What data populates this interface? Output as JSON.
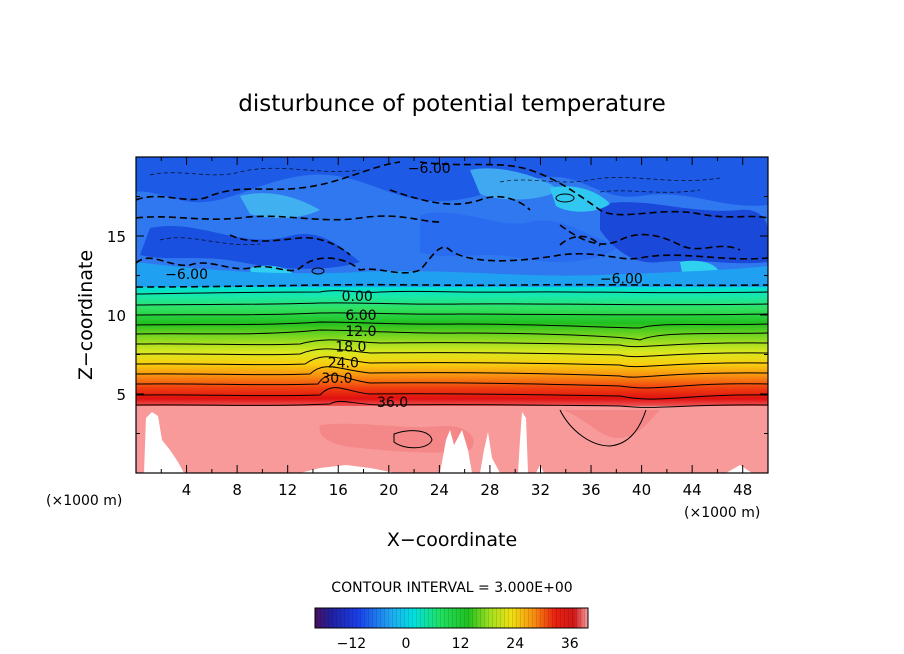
{
  "chart_data": {
    "type": "heatmap",
    "title": "disturbunce of potential temperature",
    "xlabel": "X−coordinate",
    "ylabel": "Z−coordinate",
    "x_unit": "(×1000 m)",
    "y_unit": "(×1000 m)",
    "xlim": [
      0,
      50
    ],
    "ylim": [
      0,
      20
    ],
    "x_ticks": [
      4,
      8,
      12,
      16,
      20,
      24,
      28,
      32,
      36,
      40,
      44,
      48
    ],
    "x_tick_labels": [
      "4",
      "8",
      "12",
      "16",
      "20",
      "24",
      "28",
      "32",
      "36",
      "40",
      "44",
      "48"
    ],
    "y_ticks": [
      5,
      10,
      15
    ],
    "y_tick_labels": [
      "5",
      "10",
      "15"
    ],
    "contour_interval_text": "CONTOUR INTERVAL =  3.000E+00",
    "contour_labels": [
      {
        "text": "−6.00",
        "x": 23.2,
        "y": 19.3
      },
      {
        "text": "−6.00",
        "x": 4.0,
        "y": 12.6
      },
      {
        "text": "−6.00",
        "x": 38.4,
        "y": 12.3
      },
      {
        "text": "0.00",
        "x": 17.5,
        "y": 11.2
      },
      {
        "text": "6.00",
        "x": 17.8,
        "y": 10.0
      },
      {
        "text": "12.0",
        "x": 17.8,
        "y": 9.0
      },
      {
        "text": "18.0",
        "x": 17.0,
        "y": 8.0
      },
      {
        "text": "24.0",
        "x": 16.4,
        "y": 7.0
      },
      {
        "text": "30.0",
        "x": 15.9,
        "y": 6.0
      },
      {
        "text": "36.0",
        "x": 20.3,
        "y": 4.5
      }
    ],
    "colorbar": {
      "range": [
        -20,
        40
      ],
      "ticks": [
        -12,
        0,
        12,
        24,
        36
      ],
      "tick_labels": [
        "−12",
        "0",
        "12",
        "24",
        "36"
      ]
    },
    "description_levels": {
      "upper_layer_z": [
        12,
        20
      ],
      "upper_layer_value_range": [
        -9,
        -3
      ],
      "gradient_layer_z": [
        4.2,
        12
      ],
      "gradient_value_range": [
        -3,
        36
      ],
      "lower_layer_z": [
        0,
        4.2
      ],
      "lower_layer_value": 40
    }
  },
  "colors": {
    "cold": "#1f4fe0",
    "lower": "#f99a9a",
    "mountain_white": "#ffffff"
  }
}
